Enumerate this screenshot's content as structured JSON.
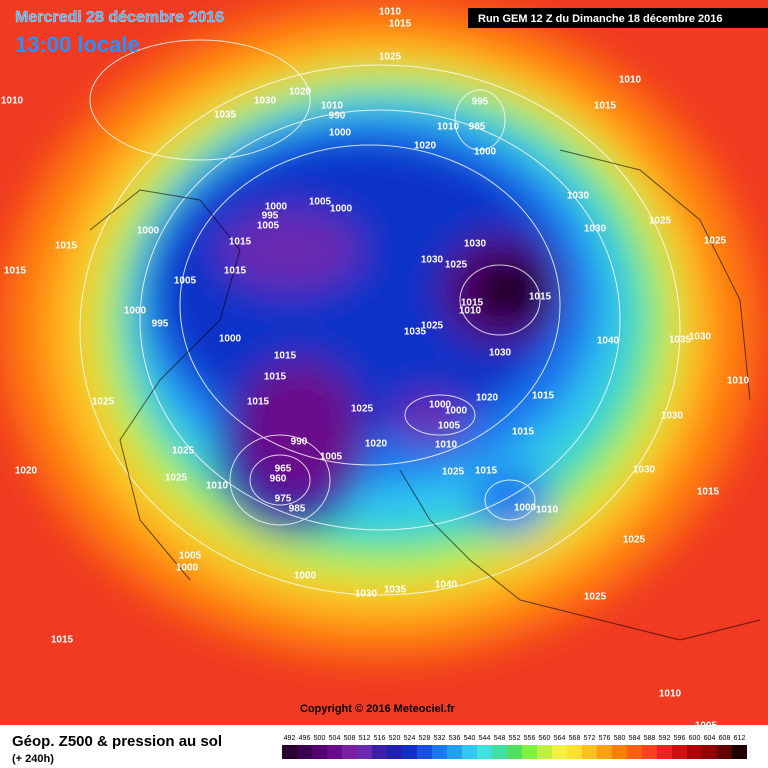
{
  "header": {
    "date": "Mercredi 28 décembre 2016",
    "time": "13:00 locale",
    "run": "Run GEM 12 Z du Dimanche 18 décembre 2016"
  },
  "copyright": "Copyright © 2016 Meteociel.fr",
  "footer": {
    "title": "Géop. Z500 & pression au sol",
    "lead": "(+ 240h)"
  },
  "scale": {
    "values": [
      492,
      496,
      500,
      504,
      508,
      512,
      516,
      520,
      524,
      528,
      532,
      536,
      540,
      544,
      548,
      552,
      556,
      560,
      564,
      568,
      572,
      576,
      580,
      584,
      588,
      592,
      596,
      600,
      604,
      608,
      612
    ],
    "colors": [
      "#2a0030",
      "#3a0050",
      "#550070",
      "#6a0a8a",
      "#7a1fa0",
      "#6a2ab0",
      "#3b1fa8",
      "#2020b0",
      "#1030c8",
      "#1a50e0",
      "#1a78f0",
      "#20a0f0",
      "#30c8f0",
      "#40e0e0",
      "#40e0a0",
      "#50e060",
      "#80f040",
      "#c0f040",
      "#f0f040",
      "#ffe030",
      "#ffc020",
      "#ffa010",
      "#ff8000",
      "#ff6010",
      "#ff4020",
      "#f02020",
      "#d01010",
      "#b00000",
      "#900000",
      "#600000",
      "#200000"
    ]
  },
  "isobar_labels": [
    1010,
    1015,
    1025,
    1035,
    1030,
    1020,
    1010,
    1010,
    990,
    1000,
    995,
    985,
    1010,
    1000,
    1020,
    1015,
    1010,
    1030,
    1025,
    1025,
    1030,
    1000,
    995,
    1000,
    1005,
    1005,
    1000,
    1015,
    1015,
    1015,
    1015,
    1005,
    1030,
    1030,
    1025,
    1015,
    1015,
    1010,
    1000,
    995,
    1035,
    1025,
    1000,
    1015,
    1030,
    1040,
    1035,
    1030,
    1010,
    1015,
    1025,
    1015,
    1020,
    1015,
    1025,
    1000,
    1000,
    1005,
    1030,
    1020,
    1010,
    1015,
    990,
    1005,
    1025,
    1025,
    1015,
    1030,
    1020,
    1025,
    1010,
    965,
    960,
    975,
    985,
    1000,
    1010,
    1015,
    1025,
    1005,
    1000,
    1000,
    1040,
    1035,
    1030,
    1025,
    1015,
    1010,
    1005
  ]
}
